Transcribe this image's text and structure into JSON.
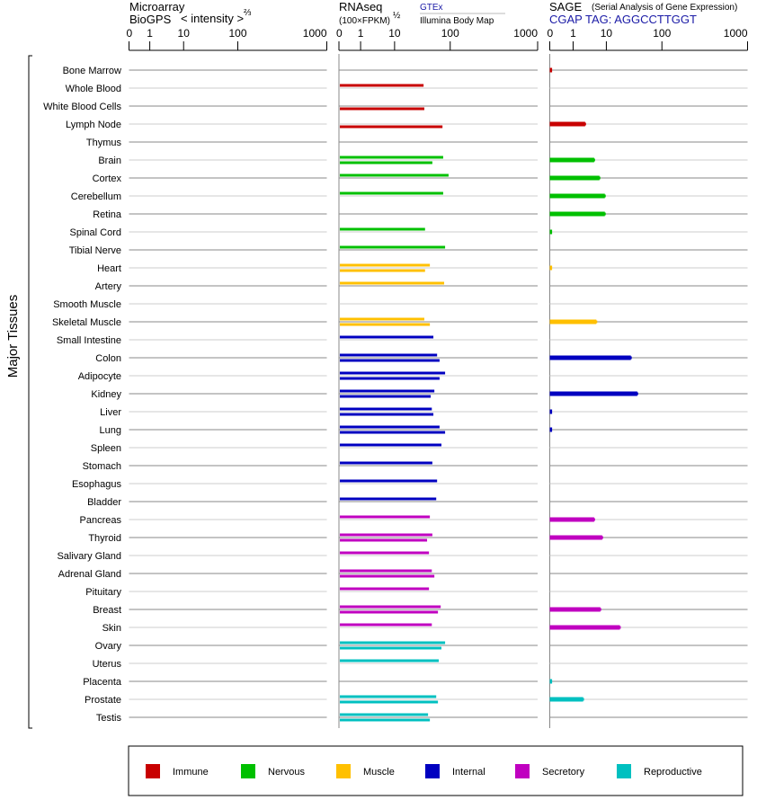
{
  "header": {
    "microarray_title": "Microarray",
    "microarray_sub": "BioGPS",
    "microarray_unit": "< intensity >",
    "microarray_exp": "⅔",
    "rnaseq_title": "RNAseq",
    "rnaseq_unit": "(100×FPKM)",
    "rnaseq_exp": "½",
    "gtex_label": "GTEx",
    "illumina_label": "Illumina Body Map",
    "sage_title": "SAGE",
    "sage_desc": "(Serial Analysis of Gene Expression)",
    "sage_tag": "CGAP TAG: AGGCCTTGGT"
  },
  "y_group_label": "Major Tissues",
  "colors": {
    "Immune": "#c80000",
    "Nervous": "#00c000",
    "Muscle": "#ffc000",
    "Internal": "#0000c0",
    "Secretory": "#c000c0",
    "Reproductive": "#00c0c0"
  },
  "legend": [
    "Immune",
    "Nervous",
    "Muscle",
    "Internal",
    "Secretory",
    "Reproductive"
  ],
  "chart_data": {
    "type": "bar",
    "orientation": "horizontal",
    "axis_ticks": [
      "0",
      "1",
      "10",
      "100",
      "1000"
    ],
    "tick_values": [
      0,
      1,
      10,
      100,
      1000
    ],
    "xlim": [
      0,
      1000
    ],
    "panels": [
      "Microarray",
      "RNAseq",
      "SAGE"
    ],
    "rows": [
      {
        "tissue": "Bone Marrow",
        "group": "Immune",
        "microarray": null,
        "gtex": null,
        "illumina": null,
        "sage": 0.1
      },
      {
        "tissue": "Whole Blood",
        "group": "Immune",
        "microarray": null,
        "gtex": 32,
        "illumina": null,
        "sage": null
      },
      {
        "tissue": "White Blood Cells",
        "group": "Immune",
        "microarray": null,
        "gtex": null,
        "illumina": 33,
        "sage": null
      },
      {
        "tissue": "Lymph Node",
        "group": "Immune",
        "microarray": null,
        "gtex": null,
        "illumina": 70,
        "sage": 2.3
      },
      {
        "tissue": "Thymus",
        "group": "Immune",
        "microarray": null,
        "gtex": null,
        "illumina": null,
        "sage": null
      },
      {
        "tissue": "Brain",
        "group": "Nervous",
        "microarray": null,
        "gtex": 72,
        "illumina": 46,
        "sage": 4.3
      },
      {
        "tissue": "Cortex",
        "group": "Nervous",
        "microarray": null,
        "gtex": 90,
        "illumina": null,
        "sage": 6.2
      },
      {
        "tissue": "Cerebellum",
        "group": "Nervous",
        "microarray": null,
        "gtex": 72,
        "illumina": null,
        "sage": 9.0
      },
      {
        "tissue": "Retina",
        "group": "Nervous",
        "microarray": null,
        "gtex": null,
        "illumina": null,
        "sage": 9.0
      },
      {
        "tissue": "Spinal Cord",
        "group": "Nervous",
        "microarray": null,
        "gtex": 34,
        "illumina": null,
        "sage": 0.1
      },
      {
        "tissue": "Tibial Nerve",
        "group": "Nervous",
        "microarray": null,
        "gtex": 78,
        "illumina": null,
        "sage": null
      },
      {
        "tissue": "Heart",
        "group": "Muscle",
        "microarray": null,
        "gtex": 41.5,
        "illumina": 34,
        "sage": 0.1
      },
      {
        "tissue": "Artery",
        "group": "Muscle",
        "microarray": null,
        "gtex": 75,
        "illumina": null,
        "sage": null
      },
      {
        "tissue": "Smooth Muscle",
        "group": "Muscle",
        "microarray": null,
        "gtex": null,
        "illumina": null,
        "sage": null
      },
      {
        "tissue": "Skeletal Muscle",
        "group": "Muscle",
        "microarray": null,
        "gtex": 33,
        "illumina": 41.5,
        "sage": 5.0
      },
      {
        "tissue": "Small Intestine",
        "group": "Internal",
        "microarray": null,
        "gtex": 48,
        "illumina": null,
        "sage": null
      },
      {
        "tissue": "Colon",
        "group": "Internal",
        "microarray": null,
        "gtex": 56,
        "illumina": 62,
        "sage": 27.6
      },
      {
        "tissue": "Adipocyte",
        "group": "Internal",
        "microarray": null,
        "gtex": 78,
        "illumina": 62,
        "sage": null
      },
      {
        "tissue": "Kidney",
        "group": "Internal",
        "microarray": null,
        "gtex": 50,
        "illumina": 43,
        "sage": 36
      },
      {
        "tissue": "Liver",
        "group": "Internal",
        "microarray": null,
        "gtex": 45,
        "illumina": 48,
        "sage": 0.1
      },
      {
        "tissue": "Lung",
        "group": "Internal",
        "microarray": null,
        "gtex": 62,
        "illumina": 78,
        "sage": 0.1
      },
      {
        "tissue": "Spleen",
        "group": "Internal",
        "microarray": null,
        "gtex": 67,
        "illumina": null,
        "sage": null
      },
      {
        "tissue": "Stomach",
        "group": "Internal",
        "microarray": null,
        "gtex": 46,
        "illumina": null,
        "sage": null
      },
      {
        "tissue": "Esophagus",
        "group": "Internal",
        "microarray": null,
        "gtex": 56,
        "illumina": null,
        "sage": null
      },
      {
        "tissue": "Bladder",
        "group": "Internal",
        "microarray": null,
        "gtex": 54,
        "illumina": null,
        "sage": null
      },
      {
        "tissue": "Pancreas",
        "group": "Secretory",
        "microarray": null,
        "gtex": 41.5,
        "illumina": null,
        "sage": 4.3
      },
      {
        "tissue": "Thyroid",
        "group": "Secretory",
        "microarray": null,
        "gtex": 46,
        "illumina": 37,
        "sage": 7.5
      },
      {
        "tissue": "Salivary Gland",
        "group": "Secretory",
        "microarray": null,
        "gtex": 40,
        "illumina": null,
        "sage": null
      },
      {
        "tissue": "Adrenal Gland",
        "group": "Secretory",
        "microarray": null,
        "gtex": 45,
        "illumina": 50,
        "sage": null
      },
      {
        "tissue": "Pituitary",
        "group": "Secretory",
        "microarray": null,
        "gtex": 40,
        "illumina": null,
        "sage": null
      },
      {
        "tissue": "Breast",
        "group": "Secretory",
        "microarray": null,
        "gtex": 65,
        "illumina": 58,
        "sage": 6.6
      },
      {
        "tissue": "Skin",
        "group": "Secretory",
        "microarray": null,
        "gtex": 45,
        "illumina": null,
        "sage": 17.5
      },
      {
        "tissue": "Ovary",
        "group": "Reproductive",
        "microarray": null,
        "gtex": 78,
        "illumina": 67,
        "sage": null
      },
      {
        "tissue": "Uterus",
        "group": "Reproductive",
        "microarray": null,
        "gtex": 60,
        "illumina": null,
        "sage": null
      },
      {
        "tissue": "Placenta",
        "group": "Reproductive",
        "microarray": null,
        "gtex": null,
        "illumina": null,
        "sage": 0.1
      },
      {
        "tissue": "Prostate",
        "group": "Reproductive",
        "microarray": null,
        "gtex": 54,
        "illumina": 58,
        "sage": 2.0
      },
      {
        "tissue": "Testis",
        "group": "Reproductive",
        "microarray": null,
        "gtex": 38.5,
        "illumina": 41.5,
        "sage": null
      }
    ]
  }
}
